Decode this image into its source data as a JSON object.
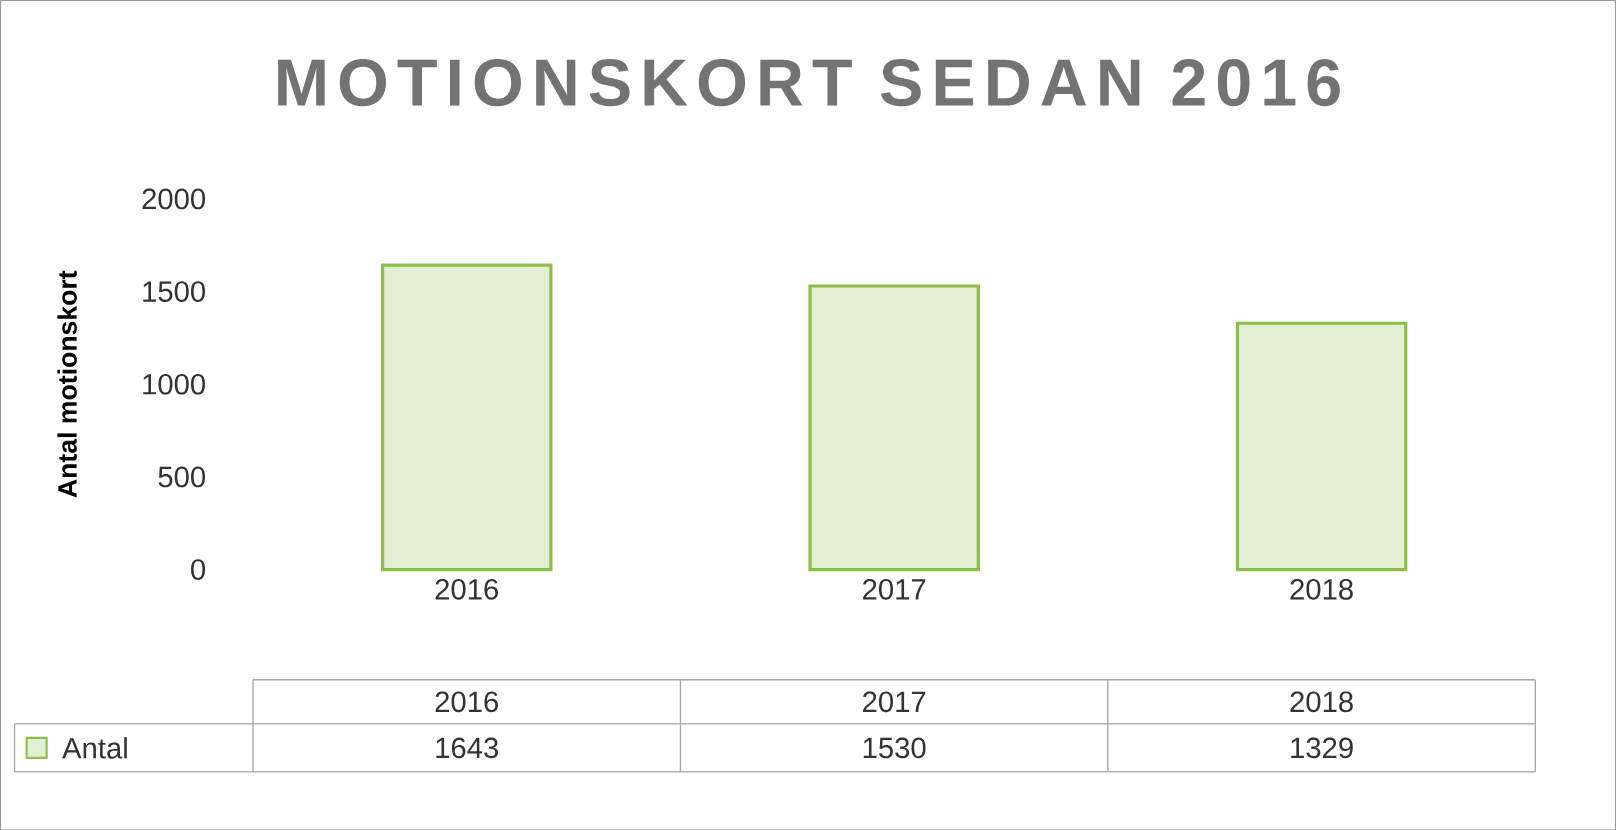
{
  "chart_data": {
    "type": "bar",
    "title": "MOTIONSKORT  SEDAN 2016",
    "ylabel": "Antal motionskort",
    "categories": [
      "2016",
      "2017",
      "2018"
    ],
    "series": [
      {
        "name": "Antal",
        "color": "#8cbf4a",
        "values": [
          1643,
          1530,
          1329
        ]
      }
    ],
    "ylim": [
      0,
      2000
    ],
    "yticks": [
      0,
      500,
      1000,
      1500,
      2000
    ],
    "grid": false,
    "data_labels": true,
    "legend": "bottom"
  }
}
